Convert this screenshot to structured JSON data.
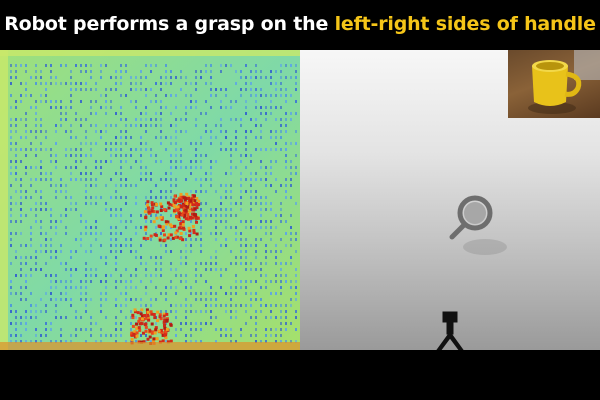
{
  "title": {
    "prefix": "Robot performs a grasp on the",
    "highlight": "left-right sides of handle",
    "highlight_color": "#f5c518"
  },
  "panels": {
    "left": {
      "kind": "grasp-affordance-heatmap",
      "colormap": "jet"
    },
    "right": {
      "kind": "simulation-view",
      "objects": [
        "mug-icon",
        "robot-gripper-icon"
      ]
    },
    "inset": {
      "kind": "camera-inset",
      "object": "mug-icon",
      "object_color": "#e8c21a"
    }
  }
}
